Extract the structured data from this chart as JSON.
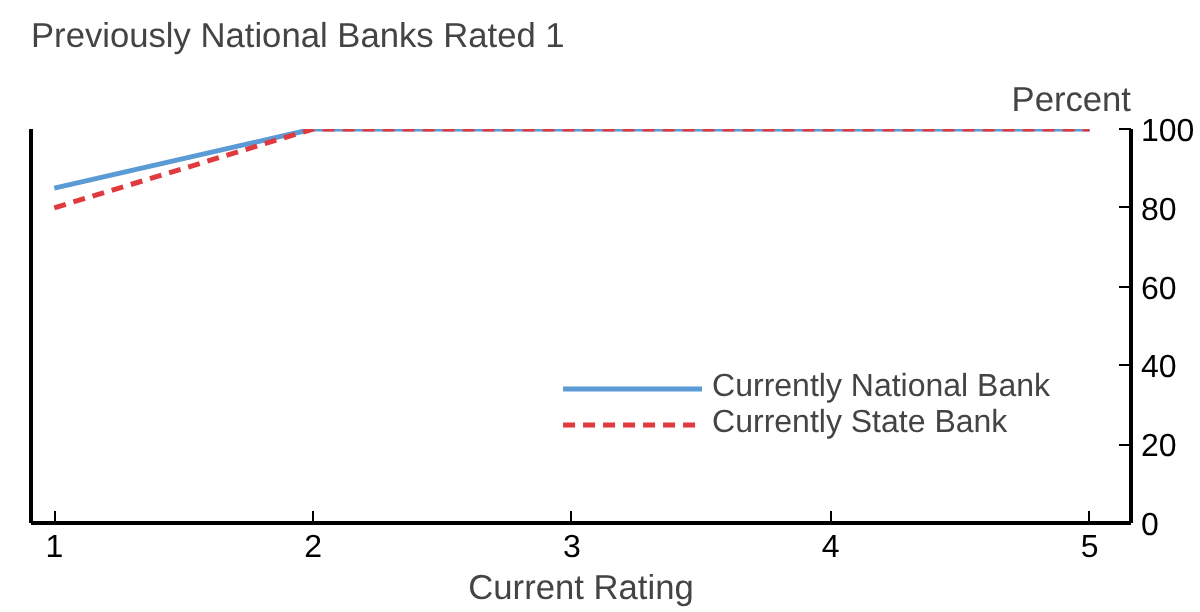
{
  "chart_data": {
    "type": "line",
    "title": "Previously National Banks Rated 1",
    "xlabel": "Current Rating",
    "ylabel": "Percent",
    "x": [
      1,
      2,
      3,
      4,
      5
    ],
    "xlim": [
      0.91,
      5.16
    ],
    "xticks": [
      1,
      2,
      3,
      4,
      5
    ],
    "ylim": [
      0,
      100
    ],
    "yticks": [
      0,
      20,
      40,
      60,
      80,
      100
    ],
    "series": [
      {
        "name": "Currently National Bank",
        "color": "#5b9bd5",
        "values": [
          85,
          100,
          100,
          100,
          100
        ],
        "line_style": "solid"
      },
      {
        "name": "Currently State Bank",
        "color": "#e0393e",
        "values": [
          80,
          100,
          100,
          100,
          100
        ],
        "line_style": "dashed"
      }
    ],
    "grid": false,
    "legend": "bottom right",
    "marker": "none"
  }
}
